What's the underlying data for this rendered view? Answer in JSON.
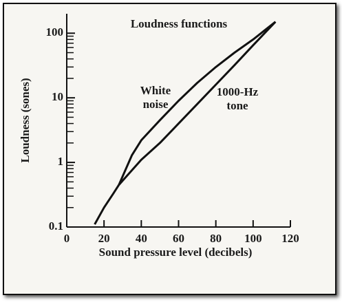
{
  "chart_data": {
    "type": "line",
    "title": "Loudness functions",
    "xlabel": "Sound pressure level (decibels)",
    "ylabel": "Loudness (sones)",
    "xlim": [
      0,
      120
    ],
    "xticks": [
      0,
      20,
      40,
      60,
      80,
      100,
      120
    ],
    "ylim": [
      0.1,
      200
    ],
    "yscale": "log",
    "yticks": [
      0.1,
      1,
      10,
      100
    ],
    "yminorticks": [
      0.2,
      0.3,
      0.4,
      0.5,
      0.6,
      0.7,
      0.8,
      0.9,
      2,
      3,
      4,
      5,
      6,
      7,
      8,
      9,
      20,
      30,
      40,
      50,
      60,
      70,
      80,
      90
    ],
    "series": [
      {
        "name": "White noise",
        "color": "#111111",
        "x": [
          28,
          35,
          40,
          50,
          60,
          70,
          80,
          90,
          100,
          112
        ],
        "values": [
          0.45,
          1.3,
          2.2,
          4.5,
          9,
          17,
          30,
          50,
          80,
          150
        ]
      },
      {
        "name": "1000-Hz tone",
        "color": "#111111",
        "x": [
          15,
          20,
          25,
          28,
          40,
          50,
          60,
          70,
          80,
          90,
          100,
          112
        ],
        "values": [
          0.11,
          0.2,
          0.33,
          0.45,
          1.1,
          2,
          4,
          8,
          16,
          32,
          65,
          150
        ]
      }
    ]
  }
}
